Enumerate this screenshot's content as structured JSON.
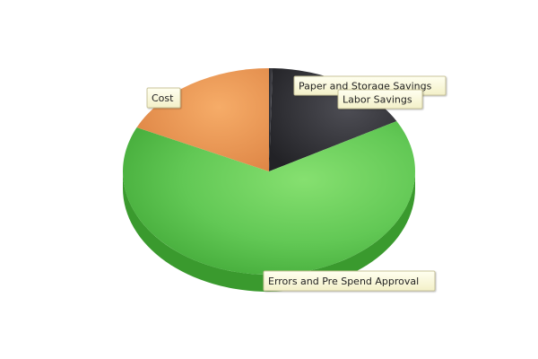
{
  "chart_data": {
    "type": "pie",
    "style": "3d",
    "legend": "none",
    "data_labels": "callout boxes",
    "slices": [
      {
        "name": "Paper and Storage Savings",
        "value": 0.4,
        "color": "#2a2a30"
      },
      {
        "name": "Labor Savings",
        "value": 16.5,
        "color": "#3a3a40"
      },
      {
        "name": "Errors and Pre Spend Approval",
        "value": 65.1,
        "color": "#5cc44e"
      },
      {
        "name": "Cost",
        "value": 18.0,
        "color": "#ee9550"
      }
    ]
  }
}
